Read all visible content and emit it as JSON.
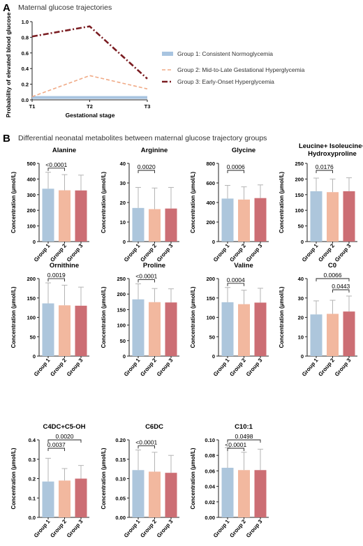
{
  "panel_a": {
    "letter": "A",
    "heading": "Maternal glucose trajectories",
    "ylabel": "Probability of elevated blood glucose",
    "xlabel": "Gestational stage",
    "x_ticks": [
      "T1",
      "T2",
      "T3"
    ],
    "y_ticks": [
      "0.0",
      "0.2",
      "0.4",
      "0.6",
      "0.8",
      "1.0"
    ]
  },
  "panel_b": {
    "letter": "B",
    "heading": "Differential neonatal metabolites between maternal glucose trajectory groups",
    "ylabel_umol": "Concentration (μmol/L)",
    "group_labels": [
      "Group 1",
      "Group 2",
      "Group 3"
    ]
  },
  "colors": {
    "group1": "#adc6dc",
    "group2": "#f2b89f",
    "group3": "#cc6e74",
    "group1_line": "#a8c4e0",
    "group2_line": "#f0aa86",
    "group3_line": "#7a1c21",
    "error_bar": "#b4b4b4"
  },
  "chart_data": [
    {
      "type": "line",
      "x": [
        "T1",
        "T2",
        "T3"
      ],
      "ylim": [
        0,
        1.0
      ],
      "series": [
        {
          "name": "Group 1: Consistent Normoglycemia",
          "values": [
            0.03,
            0.03,
            0.03
          ]
        },
        {
          "name": "Group 2: Mid-to-Late Gestational Hyperglycemia",
          "values": [
            0.04,
            0.31,
            0.14
          ]
        },
        {
          "name": "Group 3: Early-Onset Hyperglycemia",
          "values": [
            0.81,
            0.94,
            0.27
          ]
        }
      ]
    },
    {
      "type": "bar",
      "title": "Alanine",
      "categories": [
        "Group 1",
        "Group 2",
        "Group 3"
      ],
      "values": [
        338,
        328,
        327
      ],
      "error": [
        105,
        100,
        98
      ],
      "ylim": [
        0,
        500
      ],
      "yticks": [
        "0",
        "100",
        "200",
        "300",
        "400",
        "500"
      ],
      "annotations": [
        {
          "from": 0,
          "to": 1,
          "label": "<0.0001"
        }
      ]
    },
    {
      "type": "bar",
      "title": "Arginine",
      "categories": [
        "Group 1",
        "Group 2",
        "Group 3"
      ],
      "values": [
        17.2,
        16.6,
        16.9
      ],
      "error": [
        10.5,
        10.8,
        10.8
      ],
      "ylim": [
        0,
        40
      ],
      "yticks": [
        "0",
        "10",
        "20",
        "30",
        "40"
      ],
      "annotations": [
        {
          "from": 0,
          "to": 1,
          "label": "0.0020"
        }
      ]
    },
    {
      "type": "bar",
      "title": "Glycine",
      "categories": [
        "Group 1",
        "Group 2",
        "Group 3"
      ],
      "values": [
        440,
        430,
        445
      ],
      "error": [
        135,
        130,
        135
      ],
      "ylim": [
        0,
        800
      ],
      "yticks": [
        "0",
        "200",
        "400",
        "600",
        "800"
      ],
      "annotations": [
        {
          "from": 0,
          "to": 1,
          "label": "0.0006"
        }
      ]
    },
    {
      "type": "bar",
      "title": "Leucine+ Isoleucine+ Hydroxyproline",
      "title_lines": [
        "Leucine+ Isoleucine+",
        "Hydroxyproline"
      ],
      "categories": [
        "Group 1",
        "Group 2",
        "Group 3"
      ],
      "values": [
        161,
        158,
        161
      ],
      "error": [
        42,
        42,
        43
      ],
      "ylim": [
        0,
        250
      ],
      "yticks": [
        "0",
        "50",
        "100",
        "150",
        "200",
        "250"
      ],
      "annotations": [
        {
          "from": 0,
          "to": 1,
          "label": "0.0176"
        }
      ]
    },
    {
      "type": "bar",
      "title": "Ornithine",
      "categories": [
        "Group 1",
        "Group 2",
        "Group 3"
      ],
      "values": [
        136,
        131,
        130
      ],
      "error": [
        53,
        52,
        48
      ],
      "ylim": [
        0,
        200
      ],
      "yticks": [
        "0",
        "50",
        "100",
        "150",
        "200"
      ],
      "annotations": [
        {
          "from": 0,
          "to": 1,
          "label": "0.0019"
        }
      ]
    },
    {
      "type": "bar",
      "title": "Proline",
      "categories": [
        "Group 1",
        "Group 2",
        "Group 3"
      ],
      "values": [
        183,
        174,
        173
      ],
      "error": [
        50,
        44,
        44
      ],
      "ylim": [
        0,
        250
      ],
      "yticks": [
        "0",
        "50",
        "100",
        "150",
        "200",
        "250"
      ],
      "annotations": [
        {
          "from": 0,
          "to": 1,
          "label": "<0.0001"
        }
      ]
    },
    {
      "type": "bar",
      "title": "Valine",
      "categories": [
        "Group 1",
        "Group 2",
        "Group 3"
      ],
      "values": [
        139,
        134,
        138
      ],
      "error": [
        38,
        36,
        37
      ],
      "ylim": [
        0,
        200
      ],
      "yticks": [
        "0",
        "50",
        "100",
        "150",
        "200"
      ],
      "annotations": [
        {
          "from": 0,
          "to": 1,
          "label": "0.0004"
        }
      ]
    },
    {
      "type": "bar",
      "title": "C0",
      "categories": [
        "Group 1",
        "Group 2",
        "Group 3"
      ],
      "values": [
        21.5,
        21.8,
        23.0
      ],
      "error": [
        7,
        7,
        8
      ],
      "ylim": [
        0,
        40
      ],
      "yticks": [
        "0",
        "10",
        "20",
        "30",
        "40"
      ],
      "annotations": [
        {
          "from": 0,
          "to": 2,
          "label": "0.0066"
        },
        {
          "from": 1,
          "to": 2,
          "label": "0.0443"
        }
      ]
    },
    {
      "type": "bar",
      "title": "C4DC+C5-OH",
      "categories": [
        "Group 1",
        "Group 2",
        "Group 3"
      ],
      "values": [
        0.185,
        0.19,
        0.2
      ],
      "error": [
        0.12,
        0.062,
        0.068
      ],
      "ylim": [
        0,
        0.4
      ],
      "yticks": [
        "0.0",
        "0.1",
        "0.2",
        "0.3",
        "0.4"
      ],
      "annotations": [
        {
          "from": 0,
          "to": 1,
          "label": "0.0037"
        },
        {
          "from": 0,
          "to": 2,
          "label": "0.0020"
        }
      ]
    },
    {
      "type": "bar",
      "title": "C6DC",
      "categories": [
        "Group 1",
        "Group 2",
        "Group 3"
      ],
      "values": [
        0.122,
        0.118,
        0.115
      ],
      "error": [
        0.052,
        0.05,
        0.045
      ],
      "ylim": [
        0,
        0.2
      ],
      "yticks": [
        "0.00",
        "0.05",
        "0.10",
        "0.15",
        "0.20"
      ],
      "annotations": [
        {
          "from": 0,
          "to": 1,
          "label": "<0.0001"
        }
      ]
    },
    {
      "type": "bar",
      "title": "C10:1",
      "categories": [
        "Group 1",
        "Group 2",
        "Group 3"
      ],
      "values": [
        0.064,
        0.061,
        0.061
      ],
      "error": [
        0.026,
        0.023,
        0.027
      ],
      "ylim": [
        0,
        0.1
      ],
      "yticks": [
        "0.00",
        "0.02",
        "0.04",
        "0.06",
        "0.08",
        "0.10"
      ],
      "annotations": [
        {
          "from": 0,
          "to": 1,
          "label": "<0.0001"
        },
        {
          "from": 0,
          "to": 2,
          "label": "0.0498"
        }
      ]
    }
  ]
}
